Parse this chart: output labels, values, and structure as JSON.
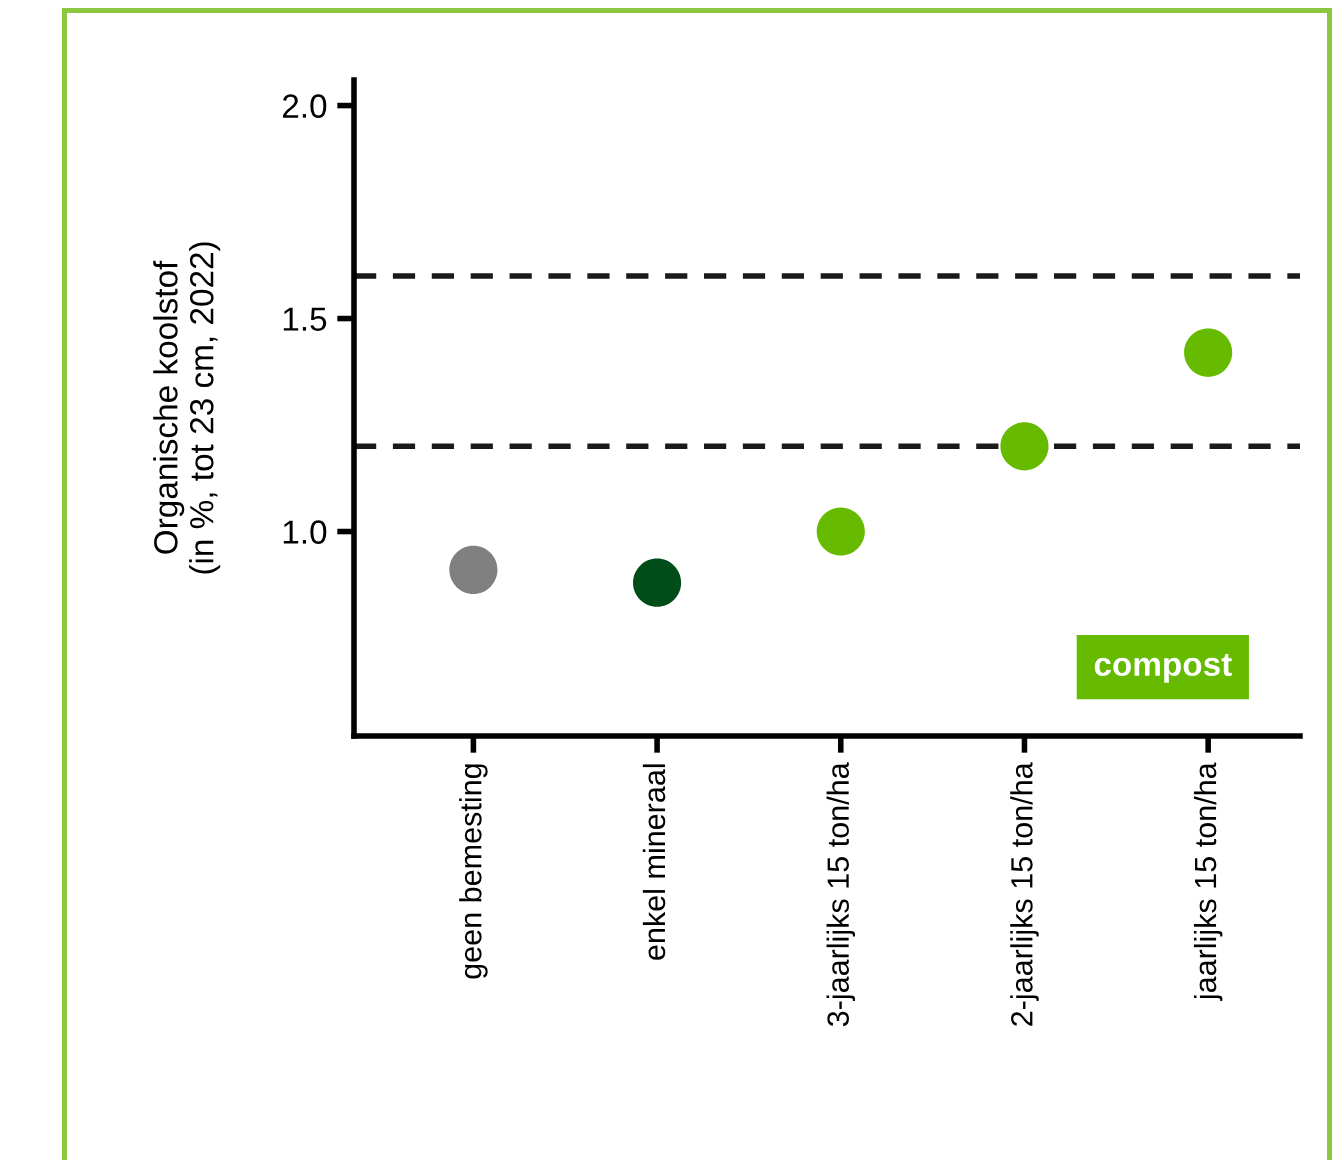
{
  "chart_data": {
    "type": "scatter",
    "ylabel": "Organische koolstof\n(in %, tot 23 cm, 2022)",
    "categories": [
      "geen bemesting",
      "enkel mineraal",
      "3-jaarlijks 15 ton/ha",
      "2-jaarlijks 15 ton/ha",
      "jaarlijks 15 ton/ha"
    ],
    "values": [
      0.91,
      0.88,
      1.0,
      1.2,
      1.42
    ],
    "colors": [
      "#808080",
      "#004d1a",
      "#66bb00",
      "#66bb00",
      "#66bb00"
    ],
    "marker": "circle",
    "ylim": [
      0.52,
      2.06
    ],
    "yticks": [
      {
        "value": 1.0,
        "label": "1.0"
      },
      1.5,
      {
        "value": 2.0,
        "label": "2.0"
      }
    ],
    "ref_lines": [
      {
        "axis": "y",
        "value": 1.6,
        "color": "#1a1a1a",
        "line_style": "dashed"
      },
      {
        "axis": "y",
        "value": 1.2,
        "color": "#1a1a1a",
        "line_style": "dashed"
      }
    ],
    "annotations": [
      "compost"
    ],
    "grid": false,
    "legend": false
  }
}
